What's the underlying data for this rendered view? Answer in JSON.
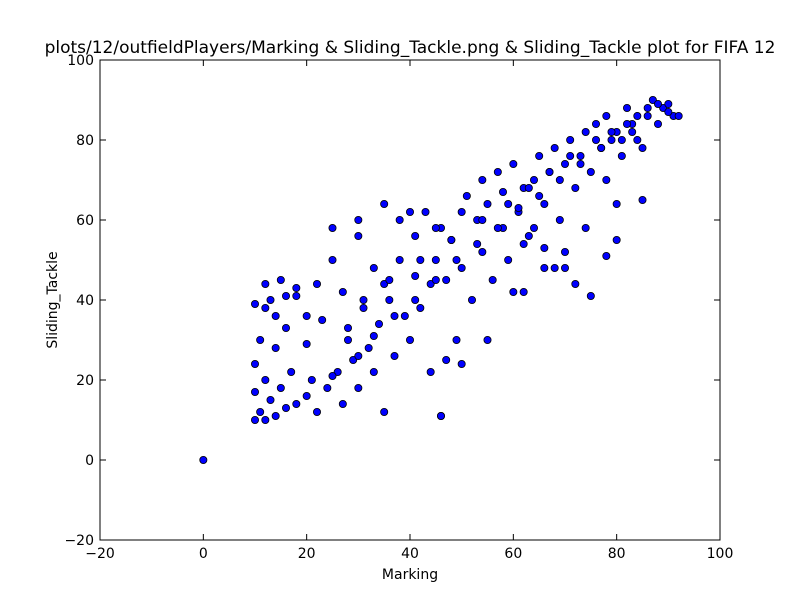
{
  "chart_data": {
    "type": "scatter",
    "title": "plots/12/outfieldPlayers/Marking & Sliding_Tackle.png & Sliding_Tackle plot for FIFA 12",
    "xlabel": "Marking",
    "ylabel": "Sliding_Tackle",
    "xlim": [
      -20,
      100
    ],
    "ylim": [
      -20,
      100
    ],
    "xticks": [
      "−20",
      "0",
      "20",
      "40",
      "60",
      "80",
      "100"
    ],
    "yticks": [
      "−20",
      "0",
      "20",
      "40",
      "60",
      "80",
      "100"
    ],
    "grid": false,
    "legend": "none",
    "colors": {
      "marker_fill": "#0000ff",
      "marker_edge": "#000000"
    },
    "series": [
      {
        "x": [
          0,
          10,
          10,
          10,
          11,
          11,
          12,
          12,
          12,
          13,
          13,
          14,
          14,
          15,
          15,
          16,
          16,
          17,
          18,
          18,
          20,
          20,
          21,
          22,
          22,
          23,
          24,
          25,
          26,
          27,
          27,
          28,
          29,
          30,
          30,
          31,
          32,
          33,
          33,
          34,
          35,
          35,
          36,
          37,
          38,
          38,
          39,
          40,
          41,
          41,
          42,
          43,
          44,
          44,
          45,
          46,
          46,
          47,
          48,
          49,
          50,
          50,
          51,
          52,
          53,
          54,
          54,
          55,
          56,
          57,
          58,
          58,
          59,
          60,
          61,
          62,
          62,
          63,
          64,
          65,
          66,
          66,
          67,
          68,
          69,
          70,
          70,
          71,
          72,
          73,
          74,
          74,
          75,
          76,
          77,
          78,
          78,
          79,
          80,
          80,
          81,
          82,
          83,
          84,
          85,
          86,
          87,
          88,
          89,
          90,
          91,
          92,
          10,
          12,
          14,
          16,
          18,
          20,
          25,
          30,
          35,
          40,
          45,
          46,
          47,
          50,
          55,
          60,
          62,
          64,
          66,
          68,
          70,
          72,
          75,
          78,
          80,
          85,
          25,
          30,
          33,
          37,
          41,
          45,
          49,
          53,
          57,
          61,
          65,
          69,
          73,
          77,
          81,
          83,
          28,
          31,
          36,
          42,
          48,
          54,
          59,
          63,
          67,
          71,
          76,
          79,
          82,
          84,
          86,
          88,
          90
        ],
        "y": [
          0,
          10,
          17,
          24,
          12,
          30,
          10,
          20,
          38,
          15,
          40,
          11,
          28,
          18,
          45,
          13,
          33,
          22,
          14,
          41,
          16,
          29,
          20,
          44,
          12,
          35,
          18,
          50,
          22,
          42,
          14,
          30,
          25,
          56,
          18,
          38,
          28,
          22,
          48,
          34,
          12,
          44,
          40,
          26,
          50,
          60,
          36,
          30,
          46,
          56,
          38,
          62,
          44,
          22,
          50,
          11,
          58,
          45,
          55,
          30,
          62,
          48,
          66,
          40,
          60,
          70,
          52,
          64,
          45,
          72,
          58,
          67,
          50,
          74,
          62,
          42,
          68,
          56,
          70,
          76,
          48,
          64,
          72,
          78,
          60,
          74,
          52,
          80,
          68,
          76,
          82,
          58,
          72,
          84,
          78,
          70,
          86,
          80,
          82,
          64,
          76,
          88,
          84,
          80,
          78,
          86,
          90,
          84,
          88,
          89,
          86,
          86,
          39,
          44,
          36,
          41,
          43,
          36,
          58,
          60,
          64,
          62,
          58,
          11,
          25,
          24,
          30,
          42,
          54,
          58,
          53,
          48,
          48,
          44,
          41,
          51,
          55,
          65,
          21,
          26,
          31,
          36,
          40,
          45,
          50,
          54,
          58,
          63,
          66,
          70,
          74,
          78,
          80,
          82,
          33,
          40,
          45,
          50,
          55,
          60,
          64,
          68,
          72,
          76,
          80,
          82,
          84,
          86,
          88,
          89,
          87
        ]
      }
    ]
  }
}
